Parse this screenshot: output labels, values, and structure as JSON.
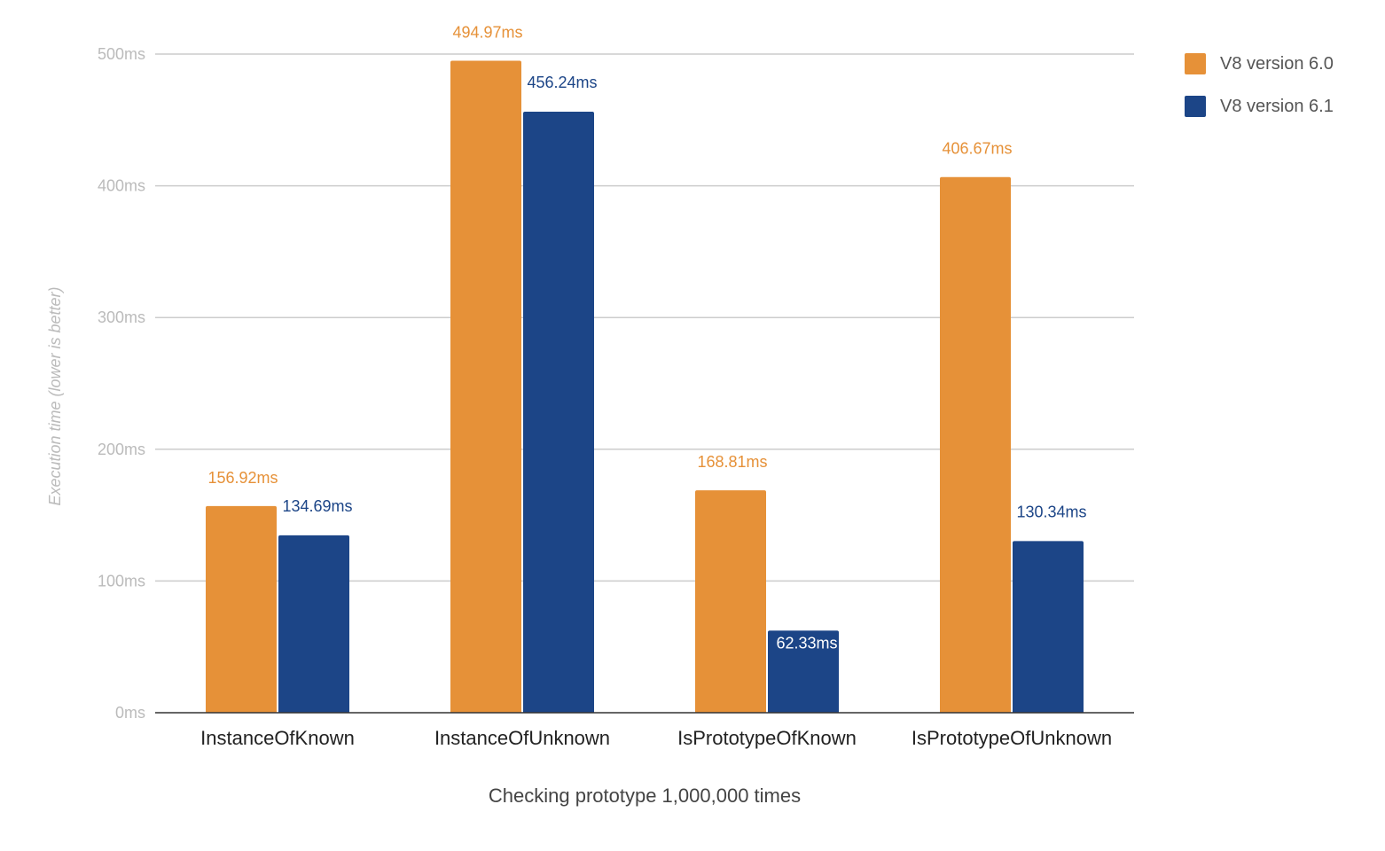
{
  "chart_data": {
    "type": "bar",
    "title": "",
    "xlabel": "Checking prototype 1,000,000 times",
    "ylabel": "Execution time (lower is better)",
    "ylim": [
      0,
      500
    ],
    "yticks": [
      "0ms",
      "100ms",
      "200ms",
      "300ms",
      "400ms",
      "500ms"
    ],
    "categories": [
      "InstanceOfKnown",
      "InstanceOfUnknown",
      "IsPrototypeOfKnown",
      "IsPrototypeOfUnknown"
    ],
    "series": [
      {
        "name": "V8 version 6.0",
        "color": "#e69138",
        "values": [
          156.92,
          494.97,
          168.81,
          406.67
        ],
        "labels": [
          "156.92ms",
          "494.97ms",
          "168.81ms",
          "406.67ms"
        ]
      },
      {
        "name": "V8 version 6.1",
        "color": "#1c4587",
        "values": [
          134.69,
          456.24,
          62.33,
          130.34
        ],
        "labels": [
          "134.69ms",
          "456.24ms",
          "62.33ms",
          "130.34ms"
        ]
      }
    ],
    "grid": true,
    "legend_position": "top-right"
  }
}
